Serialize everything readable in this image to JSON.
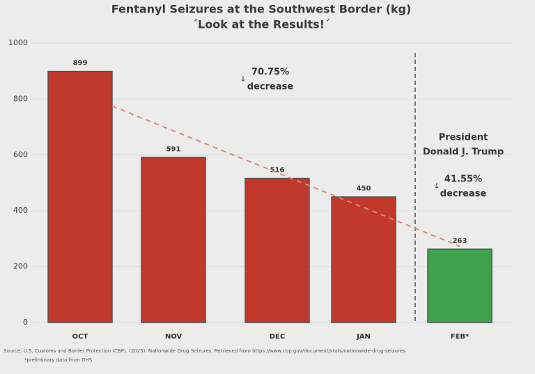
{
  "chart_data": {
    "type": "bar",
    "title": "Fentanyl Seizures at the Southwest Border (kg)",
    "subtitle": "´Look at the Results!´",
    "categories": [
      "OCT",
      "NOV",
      "DEC",
      "JAN",
      "FEB*"
    ],
    "values": [
      899,
      591,
      516,
      450,
      263
    ],
    "colors": [
      "#c0392b",
      "#c0392b",
      "#c0392b",
      "#c0392b",
      "#3fa34d"
    ],
    "ylim": [
      0,
      1000
    ],
    "yticks": [
      0,
      200,
      400,
      600,
      800,
      1000
    ],
    "annotations": [
      "70.75%",
      "decrease",
      "President",
      "Donald J. Trump",
      "41.55%",
      "decrease"
    ],
    "source": "Source: U.S. Customs and Border Protection (CBP). (2025). Nationwide Drug Seizures. Retrieved from https://www.cbp.gov/document/stats/nationwide-drug-seizures",
    "footnote": "*preliminary data from DHS"
  }
}
